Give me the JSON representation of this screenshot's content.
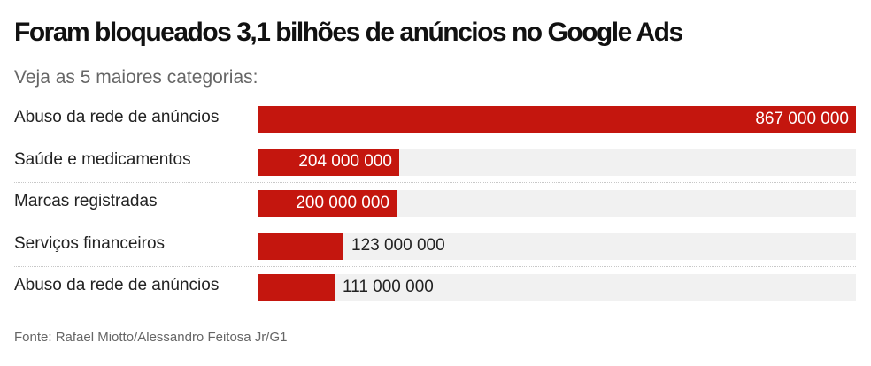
{
  "header": {
    "title": "Foram bloqueados 3,1 bilhões de anúncios no Google Ads",
    "subtitle": "Veja as 5 maiores categorias:"
  },
  "footer": {
    "source": "Fonte: Rafael Miotto/Alessandro Feitosa Jr/G1"
  },
  "colors": {
    "bar": "#c4160e",
    "track": "#f1f1f1"
  },
  "chart_data": {
    "type": "bar",
    "orientation": "horizontal",
    "title": "Foram bloqueados 3,1 bilhões de anúncios no Google Ads",
    "subtitle": "Veja as 5 maiores categorias:",
    "xlabel": "",
    "ylabel": "",
    "xlim": [
      0,
      867000000
    ],
    "grid": false,
    "legend": "none",
    "categories": [
      "Abuso da rede de anúncios",
      "Saúde e medicamentos",
      "Marcas registradas",
      "Serviços financeiros",
      "Abuso da rede de anúncios"
    ],
    "values": [
      867000000,
      204000000,
      200000000,
      123000000,
      111000000
    ],
    "value_labels": [
      "867 000 000",
      "204 000 000",
      "200 000 000",
      "123 000 000",
      "111 000 000"
    ]
  }
}
